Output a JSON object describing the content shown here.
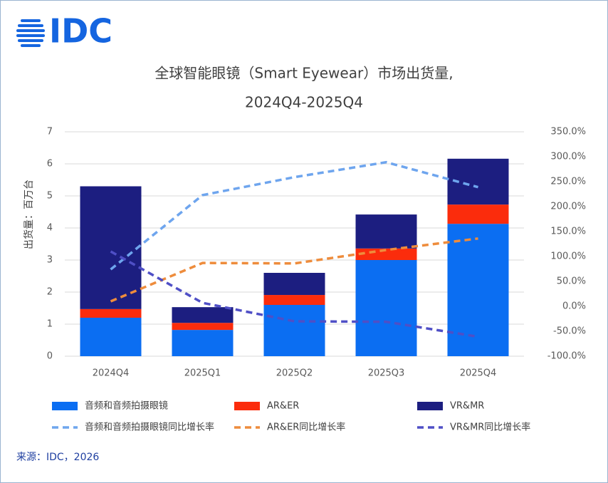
{
  "logo": "IDC",
  "source": "来源：IDC，2026",
  "chart_data": {
    "type": "bar",
    "stacked": true,
    "title": "全球智能眼镜（Smart Eyewear）市场出货量,",
    "subtitle": "2024Q4-2025Q4",
    "y_label": "出货量：百万台",
    "categories": [
      "2024Q4",
      "2025Q1",
      "2025Q2",
      "2025Q3",
      "2025Q4"
    ],
    "ylim": [
      0,
      7
    ],
    "yticks": [
      0,
      1,
      2,
      3,
      4,
      5,
      6,
      7
    ],
    "y2lim": [
      -100,
      350
    ],
    "y2ticks": [
      {
        "value": -100,
        "label": "-100.0%"
      },
      {
        "value": -50,
        "label": "-50.0%"
      },
      {
        "value": 0,
        "label": "0.0%"
      },
      {
        "value": 50,
        "label": "50.0%"
      },
      {
        "value": 100,
        "label": "100.0%"
      },
      {
        "value": 150,
        "label": "150.0%"
      },
      {
        "value": 200,
        "label": "200.0%"
      },
      {
        "value": 250,
        "label": "250.0%"
      },
      {
        "value": 300,
        "label": "300.0%"
      },
      {
        "value": 350,
        "label": "350.0%"
      }
    ],
    "grid": true,
    "series": [
      {
        "name": "音频和音频拍摄眼镜",
        "type": "bar",
        "color": "#0b6ef2",
        "values": [
          1.2,
          0.82,
          1.6,
          3.0,
          4.13
        ]
      },
      {
        "name": "AR&ER",
        "type": "bar",
        "color": "#fb2c0c",
        "values": [
          0.27,
          0.22,
          0.31,
          0.36,
          0.6
        ]
      },
      {
        "name": "VR&MR",
        "type": "bar",
        "color": "#1c1e80",
        "values": [
          3.83,
          0.49,
          0.69,
          1.06,
          1.43
        ]
      },
      {
        "name": "音频和音频拍摄眼镜同比增长率",
        "type": "line",
        "axis": "y2",
        "dashed": true,
        "color": "#6ea5ee",
        "values": [
          74,
          223,
          259,
          289,
          239
        ]
      },
      {
        "name": "AR&ER同比增长率",
        "type": "line",
        "axis": "y2",
        "dashed": true,
        "color": "#ee8c3c",
        "values": [
          10,
          87,
          86,
          113,
          136
        ]
      },
      {
        "name": "VR&MR同比增长率",
        "type": "line",
        "axis": "y2",
        "dashed": true,
        "color": "#4f4fc6",
        "values": [
          110,
          7,
          -30,
          -31,
          -61
        ]
      }
    ]
  }
}
